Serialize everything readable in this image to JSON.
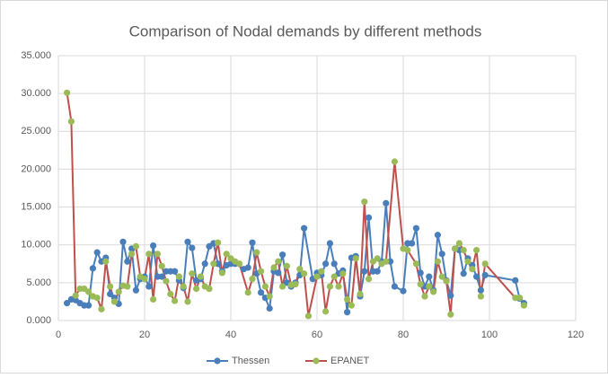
{
  "chart_data": {
    "type": "line",
    "title": "Comparison of Nodal demands by different methods",
    "xlim": [
      0,
      120
    ],
    "xticks": [
      0,
      20,
      40,
      60,
      80,
      100,
      120
    ],
    "ylim": [
      0,
      35
    ],
    "yticks": [
      {
        "value": 0,
        "label": "0.000"
      },
      {
        "value": 5,
        "label": "5.000"
      },
      {
        "value": 10,
        "label": "10.000"
      },
      {
        "value": 15,
        "label": "15.000"
      },
      {
        "value": 20,
        "label": "20.000"
      },
      {
        "value": 25,
        "label": "25.000"
      },
      {
        "value": 30,
        "label": "30.000"
      },
      {
        "value": 35,
        "label": "35.000"
      }
    ],
    "grid": true,
    "legend": "bottom",
    "series": [
      {
        "name": "Thessen",
        "color": "#4a7ebb",
        "x": [
          2,
          3,
          4,
          5,
          6,
          7,
          8,
          9,
          10,
          11,
          12,
          13,
          14,
          15,
          16,
          17,
          18,
          19,
          20,
          21,
          22,
          23,
          24,
          25,
          26,
          27,
          28,
          29,
          30,
          31,
          32,
          33,
          34,
          35,
          36,
          37,
          38,
          39,
          40,
          41,
          43,
          44,
          45,
          46,
          47,
          48,
          49,
          50,
          51,
          52,
          53,
          54,
          55,
          56,
          57,
          59,
          60,
          61,
          62,
          63,
          64,
          65,
          66,
          67,
          68,
          69,
          70,
          71,
          72,
          73,
          74,
          75,
          76,
          77,
          78,
          80,
          81,
          82,
          83,
          84,
          85,
          86,
          87,
          88,
          89,
          90,
          91,
          92,
          93,
          94,
          95,
          96,
          97,
          98,
          99,
          106,
          107,
          108
        ],
        "values": [
          2.3,
          2.8,
          2.7,
          2.3,
          2.0,
          2.0,
          6.9,
          9.0,
          7.8,
          8.3,
          3.5,
          3.0,
          2.2,
          10.4,
          7.8,
          9.5,
          4.0,
          5.5,
          5.8,
          4.5,
          9.9,
          5.8,
          5.8,
          6.5,
          6.5,
          6.5,
          5.3,
          4.3,
          10.4,
          9.6,
          5.3,
          5.5,
          7.5,
          9.8,
          10.2,
          7.5,
          6.5,
          7.3,
          7.5,
          7.5,
          6.8,
          7.0,
          10.3,
          6.2,
          3.7,
          3.0,
          1.6,
          6.5,
          6.3,
          8.7,
          5.0,
          4.5,
          5.0,
          6.0,
          12.2,
          5.5,
          6.3,
          6.0,
          7.5,
          10.2,
          7.5,
          6.2,
          6.6,
          1.1,
          8.3,
          8.5,
          3.2,
          6.5,
          13.6,
          6.5,
          6.5,
          7.8,
          15.5,
          7.8,
          4.5,
          3.9,
          10.2,
          10.2,
          12.2,
          6.3,
          4.5,
          5.8,
          4.0,
          11.3,
          8.8,
          5.3,
          3.3,
          9.5,
          9.3,
          6.2,
          8.2,
          7.3,
          5.8,
          4.0,
          6.0,
          5.3,
          2.9,
          2.3
        ]
      },
      {
        "name": "EPANET",
        "color": "#c0504d",
        "marker_color": "#9bbb59",
        "x": [
          2,
          3,
          4,
          5,
          6,
          7,
          8,
          9,
          10,
          11,
          12,
          13,
          14,
          15,
          16,
          17,
          18,
          19,
          20,
          21,
          22,
          23,
          24,
          25,
          26,
          27,
          28,
          29,
          30,
          31,
          32,
          33,
          34,
          35,
          36,
          37,
          38,
          39,
          40,
          41,
          42,
          44,
          45,
          46,
          47,
          48,
          49,
          50,
          51,
          52,
          53,
          54,
          55,
          56,
          57,
          58,
          60,
          61,
          62,
          63,
          64,
          65,
          66,
          67,
          68,
          69,
          70,
          71,
          72,
          73,
          74,
          75,
          76,
          78,
          80,
          81,
          83,
          84,
          85,
          86,
          87,
          88,
          89,
          90,
          91,
          92,
          93,
          94,
          95,
          96,
          97,
          98,
          99,
          106,
          107,
          108
        ],
        "values": [
          30.1,
          26.3,
          3.3,
          4.2,
          4.2,
          3.8,
          3.2,
          3.0,
          1.5,
          7.8,
          4.5,
          2.5,
          3.8,
          4.6,
          4.5,
          8.8,
          9.8,
          5.8,
          5.5,
          8.8,
          2.8,
          8.8,
          7.2,
          5.2,
          3.5,
          2.6,
          5.8,
          4.5,
          2.5,
          6.2,
          4.2,
          5.8,
          4.5,
          4.2,
          7.5,
          10.3,
          6.3,
          8.8,
          8.2,
          7.8,
          7.5,
          3.7,
          5.5,
          9.0,
          6.5,
          4.5,
          3.2,
          7.0,
          7.8,
          4.5,
          7.2,
          4.7,
          4.8,
          6.8,
          6.2,
          0.6,
          5.8,
          6.5,
          1.2,
          4.5,
          5.8,
          4.5,
          6.2,
          2.8,
          2.0,
          8.2,
          3.5,
          15.7,
          5.5,
          7.8,
          8.2,
          7.5,
          7.8,
          21.0,
          9.5,
          9.3,
          7.5,
          4.8,
          3.2,
          4.5,
          3.8,
          7.8,
          5.8,
          5.2,
          0.8,
          9.5,
          10.2,
          9.3,
          7.8,
          6.8,
          9.3,
          3.2,
          7.5,
          3.0,
          3.0,
          2.0
        ]
      }
    ]
  }
}
